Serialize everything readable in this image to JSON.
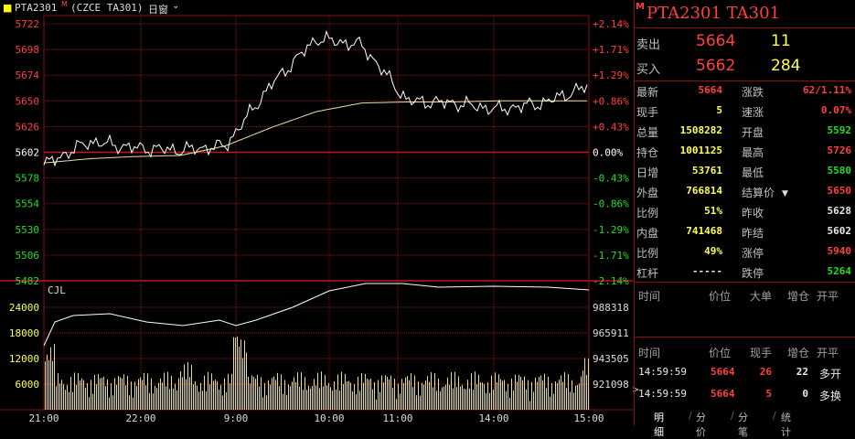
{
  "header": {
    "symbol": "PTA2301",
    "mark": "M",
    "exchange": "(CZCE TA301)",
    "period": "日窗",
    "dropdown_icon": "chevron-down-icon"
  },
  "price_axis": {
    "left_labels": [
      "5722",
      "5698",
      "5674",
      "5650",
      "5626",
      "5602",
      "5578",
      "5554",
      "5530",
      "5506",
      "5482"
    ],
    "right_labels": [
      "+2.14%",
      "+1.71%",
      "+1.29%",
      "+0.86%",
      "+0.43%",
      "0.00%",
      "-0.43%",
      "-0.86%",
      "-1.29%",
      "-1.71%",
      "-2.14%"
    ]
  },
  "volume_axis": {
    "label": "CJL",
    "left_labels": [
      "24000",
      "18000",
      "12000",
      "6000"
    ],
    "right_labels": [
      "988318",
      "965911",
      "943505",
      "921098"
    ]
  },
  "time_axis": [
    "21:00",
    "22:00",
    "9:00",
    "10:00",
    "11:00",
    "14:00",
    "15:00"
  ],
  "quote": {
    "title_mark": "M",
    "title": "PTA2301 TA301",
    "sell_label": "卖出",
    "sell_price": "5664",
    "sell_vol": "11",
    "buy_label": "买入",
    "buy_price": "5662",
    "buy_vol": "284",
    "rows": [
      {
        "l1": "最新",
        "v1": "5664",
        "c1": "red",
        "l2": "涨跌",
        "v2": "62/1.11%",
        "c2": "red"
      },
      {
        "l1": "现手",
        "v1": "5",
        "c1": "yellow",
        "l2": "速涨",
        "v2": "0.07%",
        "c2": "red"
      },
      {
        "l1": "总量",
        "v1": "1508282",
        "c1": "yellow",
        "l2": "开盘",
        "v2": "5592",
        "c2": "green"
      },
      {
        "l1": "持仓",
        "v1": "1001125",
        "c1": "yellow",
        "l2": "最高",
        "v2": "5726",
        "c2": "red"
      },
      {
        "l1": "日增",
        "v1": "53761",
        "c1": "yellow",
        "l2": "最低",
        "v2": "5580",
        "c2": "green"
      },
      {
        "l1": "外盘",
        "v1": "766814",
        "c1": "yellow",
        "l2": "结算价",
        "v2": "5650",
        "c2": "red"
      },
      {
        "l1": "比例",
        "v1": "51%",
        "c1": "yellow",
        "l2": "昨收",
        "v2": "5628",
        "c2": "white"
      },
      {
        "l1": "内盘",
        "v1": "741468",
        "c1": "yellow",
        "l2": "昨结",
        "v2": "5602",
        "c2": "white"
      },
      {
        "l1": "比例",
        "v1": "49%",
        "c1": "yellow",
        "l2": "涨停",
        "v2": "5940",
        "c2": "red"
      },
      {
        "l1": "杠杆",
        "v1": "-----",
        "c1": "white",
        "l2": "跌停",
        "v2": "5264",
        "c2": "green"
      }
    ]
  },
  "big_orders": {
    "headers": [
      "时间",
      "价位",
      "大单",
      "增仓",
      "开平"
    ]
  },
  "ticks": {
    "headers": [
      "时间",
      "价位",
      "现手",
      "增仓",
      "开平"
    ],
    "rows": [
      {
        "time": "14:59:59",
        "price": "5664",
        "vol": "26",
        "oi": "22",
        "type": "多开"
      },
      {
        "time": "14:59:59",
        "price": "5664",
        "vol": "5",
        "oi": "0",
        "type": "多换"
      }
    ]
  },
  "tabs": [
    "明细",
    "分价",
    "分笔",
    "统计"
  ],
  "colors": {
    "grid": "#8a1010",
    "up": "#ff4040",
    "down": "#22dd22",
    "price_line": "#ffffff",
    "avg_line": "#e8e0a0",
    "volume": "#e8e070"
  },
  "chart_data": {
    "type": "line",
    "title": "",
    "xlabel": "",
    "ylabel": "",
    "ylim": [
      5482,
      5722
    ],
    "prev_settle": 5602,
    "x": [
      "21:00",
      "21:30",
      "22:00",
      "22:30",
      "9:00",
      "9:30",
      "10:00",
      "10:30",
      "11:00",
      "11:30",
      "14:00",
      "14:30",
      "15:00"
    ],
    "series": [
      {
        "name": "",
        "values": [
          5590,
          5612,
          5606,
          5604,
          5608,
          5665,
          5708,
          5702,
          5650,
          5648,
          5642,
          5648,
          5664
        ]
      },
      {
        "name": "",
        "values": [
          5592,
          5596,
          5598,
          5599,
          5608,
          5625,
          5640,
          5648,
          5649,
          5649,
          5650,
          5650,
          5650
        ]
      }
    ]
  }
}
